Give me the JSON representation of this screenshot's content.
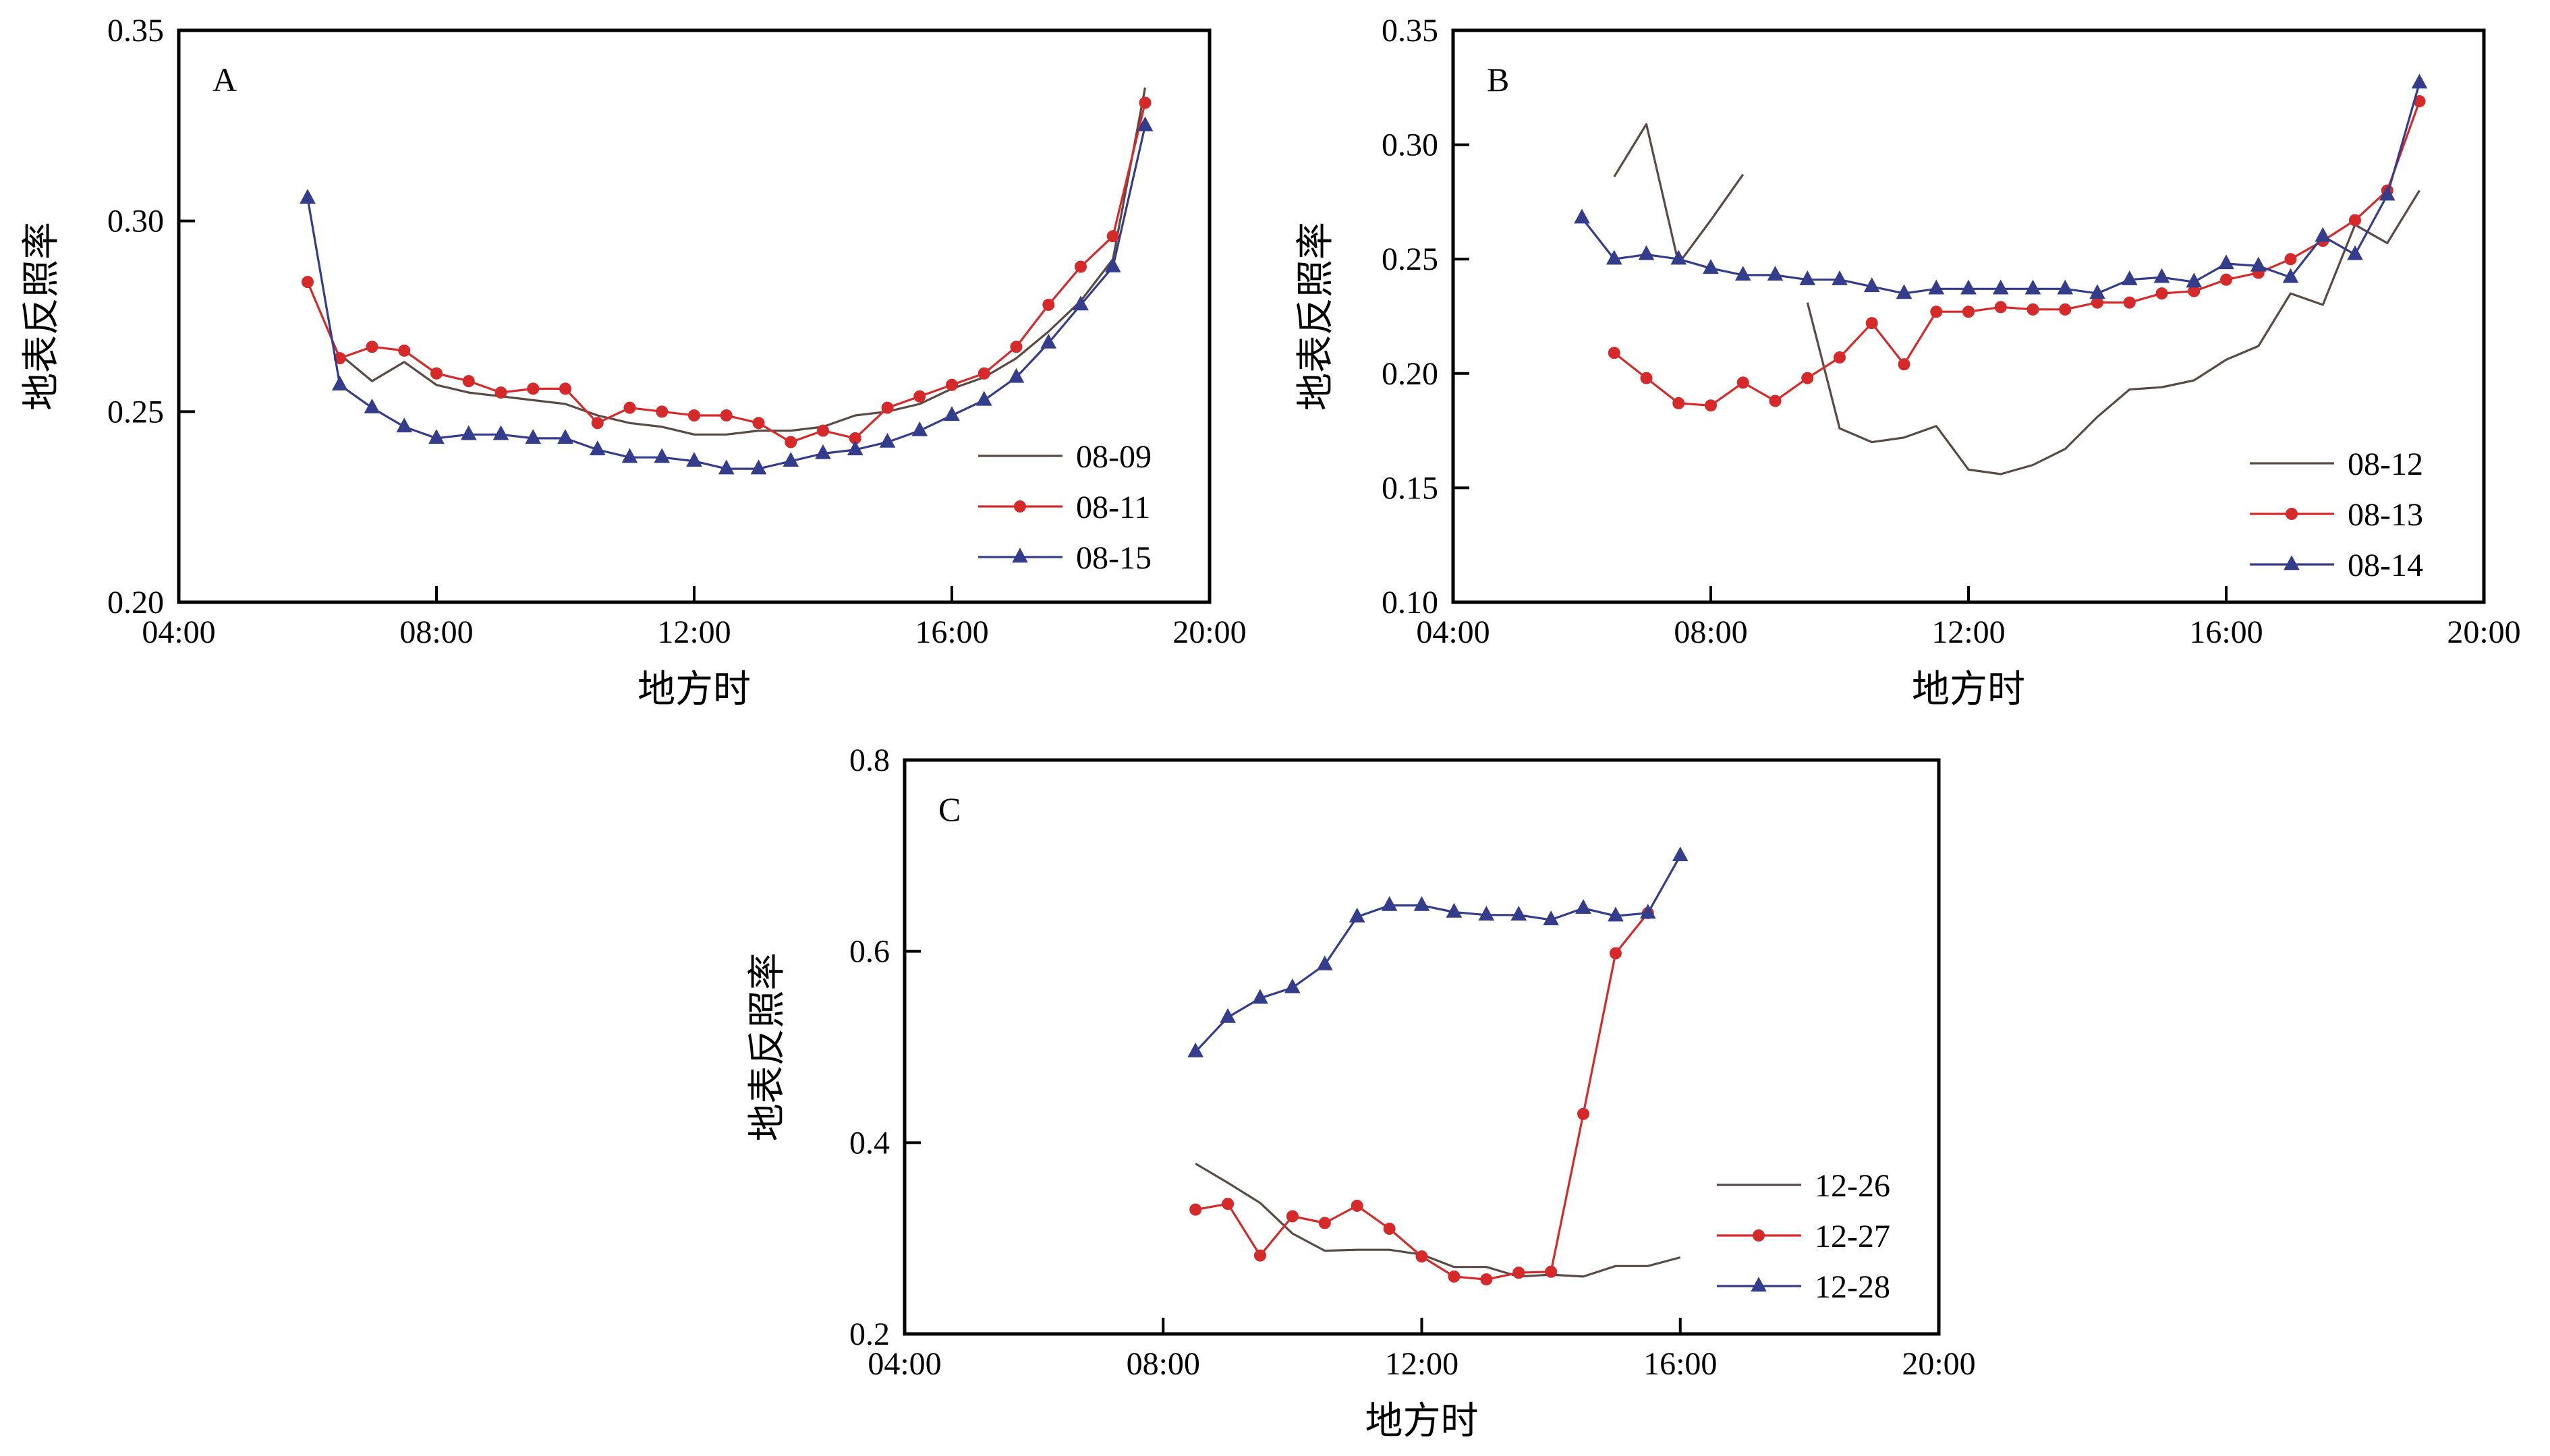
{
  "figure": {
    "series_styles": {
      "brown": {
        "color": "#5a4a46",
        "marker": "none"
      },
      "red": {
        "color": "#d62a2a",
        "marker": "circle"
      },
      "blue": {
        "color": "#343c8c",
        "marker": "triangle"
      }
    }
  },
  "chart_data": [
    {
      "type": "line",
      "panel_letter": "A",
      "xlabel": "地方时",
      "ylabel": "地表反照率",
      "xlim": [
        4,
        20
      ],
      "ylim": [
        0.2,
        0.35
      ],
      "xticks": [
        4,
        8,
        12,
        16,
        20
      ],
      "xtick_labels": [
        "04:00",
        "08:00",
        "12:00",
        "16:00",
        "20:00"
      ],
      "yticks": [
        0.2,
        0.25,
        0.3,
        0.35
      ],
      "ytick_labels": [
        "0.20",
        "0.25",
        "0.30",
        "0.35"
      ],
      "legend_position": "bottom-right",
      "series": [
        {
          "name": "08-09",
          "style": "brown",
          "x": [
            6.5,
            7,
            7.5,
            8,
            8.5,
            9,
            9.5,
            10,
            10.5,
            11,
            11.5,
            12,
            12.5,
            13,
            13.5,
            14,
            14.5,
            15,
            15.5,
            16,
            16.5,
            17,
            17.5,
            18,
            18.5,
            19
          ],
          "y": [
            0.265,
            0.258,
            0.263,
            0.257,
            0.255,
            0.254,
            0.253,
            0.252,
            0.249,
            0.247,
            0.246,
            0.244,
            0.244,
            0.245,
            0.245,
            0.246,
            0.249,
            0.25,
            0.252,
            0.256,
            0.259,
            0.264,
            0.271,
            0.279,
            0.29,
            0.335
          ]
        },
        {
          "name": "08-11",
          "style": "red",
          "x": [
            6,
            6.5,
            7,
            7.5,
            8,
            8.5,
            9,
            9.5,
            10,
            10.5,
            11,
            11.5,
            12,
            12.5,
            13,
            13.5,
            14,
            14.5,
            15,
            15.5,
            16,
            16.5,
            17,
            17.5,
            18,
            18.5,
            19
          ],
          "y": [
            0.284,
            0.264,
            0.267,
            0.266,
            0.26,
            0.258,
            0.255,
            0.256,
            0.256,
            0.247,
            0.251,
            0.25,
            0.249,
            0.249,
            0.247,
            0.242,
            0.245,
            0.243,
            0.251,
            0.254,
            0.257,
            0.26,
            0.267,
            0.278,
            0.288,
            0.296,
            0.331
          ]
        },
        {
          "name": "08-15",
          "style": "blue",
          "x": [
            6,
            6.5,
            7,
            7.5,
            8,
            8.5,
            9,
            9.5,
            10,
            10.5,
            11,
            11.5,
            12,
            12.5,
            13,
            13.5,
            14,
            14.5,
            15,
            15.5,
            16,
            16.5,
            17,
            17.5,
            18,
            18.5,
            19
          ],
          "y": [
            0.306,
            0.257,
            0.251,
            0.246,
            0.243,
            0.244,
            0.244,
            0.243,
            0.243,
            0.24,
            0.238,
            0.238,
            0.237,
            0.235,
            0.235,
            0.237,
            0.239,
            0.24,
            0.242,
            0.245,
            0.249,
            0.253,
            0.259,
            0.268,
            0.278,
            0.288,
            0.325
          ]
        }
      ]
    },
    {
      "type": "line",
      "panel_letter": "B",
      "xlabel": "地方时",
      "ylabel": "地表反照率",
      "xlim": [
        4,
        20
      ],
      "ylim": [
        0.1,
        0.35
      ],
      "xticks": [
        4,
        8,
        12,
        16,
        20
      ],
      "xtick_labels": [
        "04:00",
        "08:00",
        "12:00",
        "16:00",
        "20:00"
      ],
      "yticks": [
        0.1,
        0.15,
        0.2,
        0.25,
        0.3,
        0.35
      ],
      "ytick_labels": [
        "0.10",
        "0.15",
        "0.20",
        "0.25",
        "0.30",
        "0.35"
      ],
      "legend_position": "bottom-right",
      "series": [
        {
          "name": "08-12",
          "style": "brown",
          "x": [
            6.5,
            7,
            7.5,
            8,
            8.5,
            null,
            9.5,
            10,
            10.5,
            11,
            11.5,
            12,
            12.5,
            13,
            13.5,
            14,
            14.5,
            15,
            15.5,
            16,
            16.5,
            17,
            17.5,
            18,
            18.5,
            19
          ],
          "y": [
            0.286,
            0.309,
            0.248,
            0.267,
            0.287,
            null,
            0.231,
            0.176,
            0.17,
            0.172,
            0.177,
            0.158,
            0.156,
            0.16,
            0.167,
            0.181,
            0.193,
            0.194,
            0.197,
            0.206,
            0.212,
            0.235,
            0.23,
            0.265,
            0.257,
            0.28
          ]
        },
        {
          "name": "08-13",
          "style": "red",
          "x": [
            6.5,
            7,
            7.5,
            8,
            8.5,
            9,
            9.5,
            10,
            10.5,
            11,
            11.5,
            12,
            12.5,
            13,
            13.5,
            14,
            14.5,
            15,
            15.5,
            16,
            16.5,
            17,
            17.5,
            18,
            18.5,
            19
          ],
          "y": [
            0.209,
            0.198,
            0.187,
            0.186,
            0.196,
            0.188,
            0.198,
            0.207,
            0.222,
            0.204,
            0.227,
            0.227,
            0.229,
            0.228,
            0.228,
            0.231,
            0.231,
            0.235,
            0.236,
            0.241,
            0.244,
            0.25,
            0.258,
            0.267,
            0.28,
            0.319
          ]
        },
        {
          "name": "08-14",
          "style": "blue",
          "x": [
            6,
            6.5,
            7,
            7.5,
            8,
            8.5,
            9,
            9.5,
            10,
            10.5,
            11,
            11.5,
            12,
            12.5,
            13,
            13.5,
            14,
            14.5,
            15,
            15.5,
            16,
            16.5,
            17,
            17.5,
            18,
            18.5,
            19
          ],
          "y": [
            0.268,
            0.25,
            0.252,
            0.25,
            0.246,
            0.243,
            0.243,
            0.241,
            0.241,
            0.238,
            0.235,
            0.237,
            0.237,
            0.237,
            0.237,
            0.237,
            0.235,
            0.241,
            0.242,
            0.24,
            0.248,
            0.247,
            0.242,
            0.26,
            0.252,
            0.278,
            0.327
          ]
        }
      ]
    },
    {
      "type": "line",
      "panel_letter": "C",
      "xlabel": "地方时",
      "ylabel": "地表反照率",
      "xlim": [
        4,
        20
      ],
      "ylim": [
        0.2,
        0.8
      ],
      "xticks": [
        4,
        8,
        12,
        16,
        20
      ],
      "xtick_labels": [
        "04:00",
        "08:00",
        "12:00",
        "16:00",
        "20:00"
      ],
      "yticks": [
        0.2,
        0.4,
        0.6,
        0.8
      ],
      "ytick_labels": [
        "0.2",
        "0.4",
        "0.6",
        "0.8"
      ],
      "legend_position": "bottom-right",
      "series": [
        {
          "name": "12-26",
          "style": "brown",
          "x": [
            8.5,
            9,
            9.5,
            10,
            10.5,
            11,
            11.5,
            12,
            12.5,
            13,
            13.5,
            14,
            14.5,
            15,
            15.5,
            16
          ],
          "y": [
            0.378,
            0.358,
            0.337,
            0.305,
            0.287,
            0.288,
            0.288,
            0.283,
            0.27,
            0.27,
            0.26,
            0.262,
            0.26,
            0.271,
            0.271,
            0.28
          ]
        },
        {
          "name": "12-27",
          "style": "red",
          "x": [
            8.5,
            9,
            9.5,
            10,
            10.5,
            11,
            11.5,
            12,
            12.5,
            13,
            13.5,
            14,
            14.5,
            15,
            15.5
          ],
          "y": [
            0.33,
            0.336,
            0.282,
            0.323,
            0.316,
            0.334,
            0.31,
            0.281,
            0.26,
            0.257,
            0.264,
            0.265,
            0.43,
            0.598,
            0.64
          ]
        },
        {
          "name": "12-28",
          "style": "blue",
          "x": [
            8.5,
            9,
            9.5,
            10,
            10.5,
            11,
            11.5,
            12,
            12.5,
            13,
            13.5,
            14,
            14.5,
            15,
            15.5,
            16
          ],
          "y": [
            0.495,
            0.531,
            0.551,
            0.562,
            0.586,
            0.636,
            0.648,
            0.648,
            0.641,
            0.638,
            0.638,
            0.633,
            0.645,
            0.637,
            0.64,
            0.7
          ]
        }
      ]
    }
  ]
}
